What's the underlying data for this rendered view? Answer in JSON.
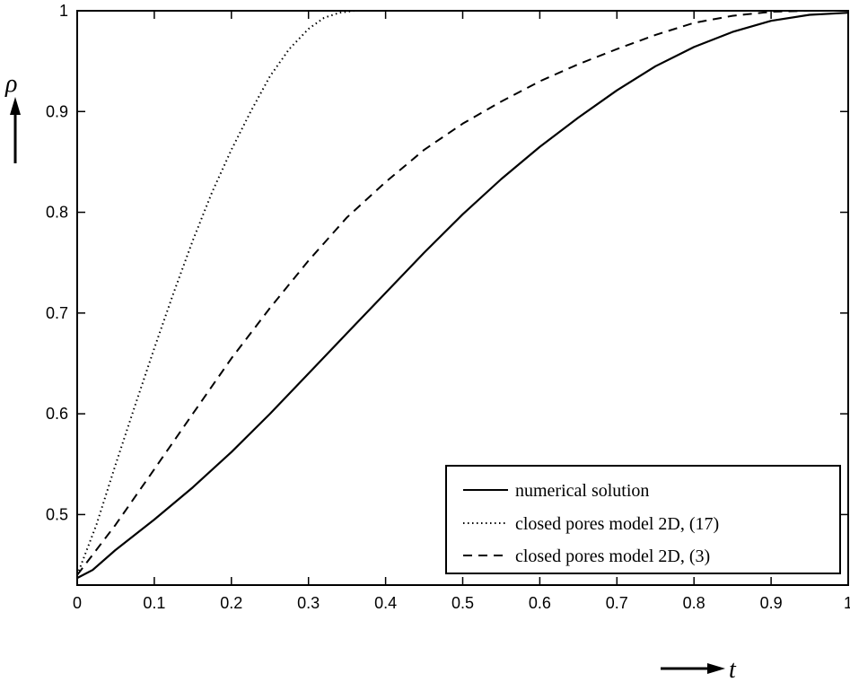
{
  "chart_data": {
    "type": "line",
    "xlabel": "t",
    "ylabel": "ρ",
    "xlim": [
      0,
      1
    ],
    "ylim": [
      0.43,
      1
    ],
    "xticks": [
      "0",
      "0.1",
      "0.2",
      "0.3",
      "0.4",
      "0.5",
      "0.6",
      "0.7",
      "0.8",
      "0.9",
      "1"
    ],
    "yticks": [
      "0.5",
      "0.6",
      "0.7",
      "0.8",
      "0.9",
      "1"
    ],
    "grid": false,
    "legend_position": "bottom-right",
    "series": [
      {
        "name": "numerical solution",
        "style": "solid",
        "color": "#000000",
        "x": [
          0,
          0.02,
          0.05,
          0.1,
          0.15,
          0.2,
          0.25,
          0.3,
          0.35,
          0.4,
          0.45,
          0.5,
          0.55,
          0.6,
          0.65,
          0.7,
          0.75,
          0.8,
          0.85,
          0.9,
          0.95,
          1.0
        ],
        "y": [
          0.437,
          0.445,
          0.465,
          0.495,
          0.527,
          0.562,
          0.6,
          0.64,
          0.68,
          0.72,
          0.76,
          0.798,
          0.833,
          0.865,
          0.894,
          0.921,
          0.945,
          0.964,
          0.979,
          0.99,
          0.996,
          0.998
        ]
      },
      {
        "name": "closed pores model 2D, (17)",
        "style": "dotted",
        "color": "#000000",
        "x": [
          0,
          0.025,
          0.05,
          0.075,
          0.1,
          0.125,
          0.15,
          0.175,
          0.2,
          0.225,
          0.25,
          0.275,
          0.3,
          0.32,
          0.34,
          0.36,
          0.38,
          0.4,
          0.5,
          0.6,
          0.7,
          0.8,
          0.9,
          1.0
        ],
        "y": [
          0.44,
          0.49,
          0.55,
          0.608,
          0.665,
          0.72,
          0.772,
          0.82,
          0.862,
          0.9,
          0.935,
          0.962,
          0.982,
          0.993,
          0.998,
          1.0,
          1.0,
          1.0,
          1.0,
          1.0,
          1.0,
          1.0,
          1.0,
          1.0
        ]
      },
      {
        "name": "closed pores model 2D, (3)",
        "style": "dashed",
        "color": "#000000",
        "x": [
          0,
          0.05,
          0.1,
          0.15,
          0.2,
          0.25,
          0.3,
          0.35,
          0.4,
          0.45,
          0.5,
          0.55,
          0.6,
          0.65,
          0.7,
          0.75,
          0.8,
          0.85,
          0.9,
          0.95,
          1.0
        ],
        "y": [
          0.44,
          0.49,
          0.545,
          0.6,
          0.655,
          0.705,
          0.752,
          0.795,
          0.83,
          0.862,
          0.888,
          0.91,
          0.93,
          0.947,
          0.962,
          0.976,
          0.988,
          0.995,
          0.999,
          1.0,
          1.0
        ]
      }
    ]
  }
}
